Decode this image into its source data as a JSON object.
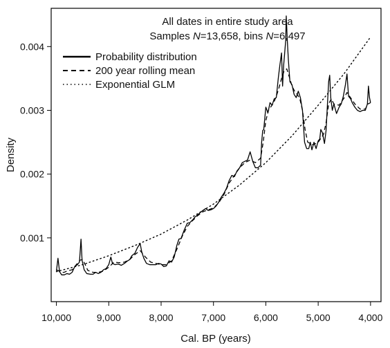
{
  "chart_data": {
    "type": "line",
    "title": "All dates in entire study area",
    "subtitle": {
      "prefix": "Samples ",
      "n1_symbol": "N",
      "n1_value": "=13,658",
      "sep": ", bins ",
      "n2_symbol": "N",
      "n2_value": "=6,497"
    },
    "xlabel": "Cal. BP (years)",
    "ylabel": "Density",
    "x_reversed": true,
    "xlim": [
      10100,
      3800
    ],
    "ylim": [
      0.0,
      0.0046
    ],
    "x_ticks": [
      {
        "value": 10000,
        "label": "10,000"
      },
      {
        "value": 9000,
        "label": "9,000"
      },
      {
        "value": 8000,
        "label": "8,000"
      },
      {
        "value": 7000,
        "label": "7,000"
      },
      {
        "value": 6000,
        "label": "6,000"
      },
      {
        "value": 5000,
        "label": "5,000"
      },
      {
        "value": 4000,
        "label": "4,000"
      }
    ],
    "y_ticks": [
      {
        "value": 0.001,
        "label": "0.001"
      },
      {
        "value": 0.002,
        "label": "0.002"
      },
      {
        "value": 0.003,
        "label": "0.003"
      },
      {
        "value": 0.004,
        "label": "0.004"
      }
    ],
    "legend_position": "top-left",
    "series": [
      {
        "name": "Probability distribution",
        "style": "solid",
        "color": "#000000",
        "points": [
          [
            10000,
            0.00048
          ],
          [
            9970,
            0.00068
          ],
          [
            9940,
            0.00047
          ],
          [
            9900,
            0.00042
          ],
          [
            9850,
            0.00042
          ],
          [
            9800,
            0.00044
          ],
          [
            9750,
            0.00043
          ],
          [
            9700,
            0.00046
          ],
          [
            9650,
            0.00055
          ],
          [
            9600,
            0.00058
          ],
          [
            9560,
            0.00062
          ],
          [
            9530,
            0.00098
          ],
          [
            9510,
            0.00065
          ],
          [
            9470,
            0.0005
          ],
          [
            9420,
            0.00044
          ],
          [
            9350,
            0.00043
          ],
          [
            9300,
            0.00043
          ],
          [
            9250,
            0.00046
          ],
          [
            9200,
            0.00044
          ],
          [
            9150,
            0.00046
          ],
          [
            9100,
            0.0005
          ],
          [
            9050,
            0.00052
          ],
          [
            9000,
            0.00058
          ],
          [
            8960,
            0.0007
          ],
          [
            8930,
            0.0006
          ],
          [
            8880,
            0.00058
          ],
          [
            8820,
            0.00059
          ],
          [
            8760,
            0.00057
          ],
          [
            8700,
            0.0006
          ],
          [
            8640,
            0.00064
          ],
          [
            8600,
            0.00066
          ],
          [
            8560,
            0.00072
          ],
          [
            8500,
            0.00076
          ],
          [
            8450,
            0.00085
          ],
          [
            8400,
            0.00091
          ],
          [
            8370,
            0.00078
          ],
          [
            8330,
            0.00068
          ],
          [
            8280,
            0.0006
          ],
          [
            8220,
            0.00058
          ],
          [
            8170,
            0.00058
          ],
          [
            8100,
            0.00058
          ],
          [
            8050,
            0.0006
          ],
          [
            8000,
            0.00059
          ],
          [
            7950,
            0.00055
          ],
          [
            7900,
            0.00056
          ],
          [
            7850,
            0.00064
          ],
          [
            7800,
            0.00062
          ],
          [
            7750,
            0.0007
          ],
          [
            7700,
            0.00088
          ],
          [
            7660,
            0.00098
          ],
          [
            7620,
            0.00099
          ],
          [
            7560,
            0.00112
          ],
          [
            7500,
            0.00123
          ],
          [
            7450,
            0.00124
          ],
          [
            7400,
            0.00128
          ],
          [
            7350,
            0.00133
          ],
          [
            7300,
            0.00136
          ],
          [
            7250,
            0.0014
          ],
          [
            7200,
            0.00143
          ],
          [
            7150,
            0.00146
          ],
          [
            7100,
            0.00143
          ],
          [
            7050,
            0.00144
          ],
          [
            7000,
            0.00146
          ],
          [
            6950,
            0.0015
          ],
          [
            6900,
            0.00156
          ],
          [
            6850,
            0.00164
          ],
          [
            6800,
            0.0017
          ],
          [
            6750,
            0.00178
          ],
          [
            6700,
            0.0019
          ],
          [
            6650,
            0.00198
          ],
          [
            6600,
            0.00196
          ],
          [
            6550,
            0.00205
          ],
          [
            6500,
            0.0021
          ],
          [
            6450,
            0.00218
          ],
          [
            6400,
            0.0022
          ],
          [
            6350,
            0.00222
          ],
          [
            6300,
            0.00235
          ],
          [
            6250,
            0.0022
          ],
          [
            6200,
            0.0021
          ],
          [
            6150,
            0.0021
          ],
          [
            6100,
            0.00214
          ],
          [
            6080,
            0.0025
          ],
          [
            6060,
            0.00268
          ],
          [
            6040,
            0.0027
          ],
          [
            6000,
            0.00305
          ],
          [
            5960,
            0.00296
          ],
          [
            5920,
            0.00312
          ],
          [
            5880,
            0.00308
          ],
          [
            5840,
            0.00318
          ],
          [
            5800,
            0.0032
          ],
          [
            5760,
            0.00352
          ],
          [
            5730,
            0.00372
          ],
          [
            5700,
            0.0039
          ],
          [
            5680,
            0.00338
          ],
          [
            5660,
            0.0037
          ],
          [
            5640,
            0.0039
          ],
          [
            5620,
            0.0041
          ],
          [
            5610,
            0.00448
          ],
          [
            5590,
            0.0041
          ],
          [
            5570,
            0.0038
          ],
          [
            5540,
            0.00345
          ],
          [
            5500,
            0.0034
          ],
          [
            5460,
            0.00325
          ],
          [
            5420,
            0.0032
          ],
          [
            5380,
            0.0033
          ],
          [
            5340,
            0.0032
          ],
          [
            5300,
            0.003
          ],
          [
            5260,
            0.0025
          ],
          [
            5220,
            0.0024
          ],
          [
            5180,
            0.0024
          ],
          [
            5150,
            0.0025
          ],
          [
            5120,
            0.00238
          ],
          [
            5080,
            0.0025
          ],
          [
            5040,
            0.0024
          ],
          [
            5000,
            0.00252
          ],
          [
            4970,
            0.00255
          ],
          [
            4950,
            0.0027
          ],
          [
            4920,
            0.00265
          ],
          [
            4880,
            0.00248
          ],
          [
            4850,
            0.00268
          ],
          [
            4800,
            0.00345
          ],
          [
            4780,
            0.00355
          ],
          [
            4760,
            0.0032
          ],
          [
            4730,
            0.003
          ],
          [
            4700,
            0.0031
          ],
          [
            4650,
            0.00295
          ],
          [
            4600,
            0.00305
          ],
          [
            4560,
            0.0031
          ],
          [
            4520,
            0.00322
          ],
          [
            4480,
            0.0034
          ],
          [
            4450,
            0.00357
          ],
          [
            4420,
            0.00322
          ],
          [
            4380,
            0.00318
          ],
          [
            4350,
            0.00312
          ],
          [
            4300,
            0.00305
          ],
          [
            4250,
            0.003
          ],
          [
            4200,
            0.00298
          ],
          [
            4150,
            0.003
          ],
          [
            4100,
            0.003
          ],
          [
            4060,
            0.0031
          ],
          [
            4040,
            0.00338
          ],
          [
            4020,
            0.0032
          ],
          [
            4000,
            0.00312
          ]
        ]
      },
      {
        "name": "200 year rolling mean",
        "style": "dashed",
        "color": "#000000",
        "points": [
          [
            10000,
            0.0005
          ],
          [
            9950,
            0.00048
          ],
          [
            9900,
            0.00046
          ],
          [
            9850,
            0.00046
          ],
          [
            9800,
            0.00048
          ],
          [
            9700,
            0.0005
          ],
          [
            9600,
            0.0006
          ],
          [
            9550,
            0.00065
          ],
          [
            9500,
            0.00066
          ],
          [
            9450,
            0.00058
          ],
          [
            9400,
            0.00049
          ],
          [
            9300,
            0.00046
          ],
          [
            9200,
            0.00046
          ],
          [
            9100,
            0.00048
          ],
          [
            9000,
            0.00054
          ],
          [
            8900,
            0.00062
          ],
          [
            8800,
            0.00061
          ],
          [
            8700,
            0.00062
          ],
          [
            8600,
            0.00066
          ],
          [
            8500,
            0.00074
          ],
          [
            8400,
            0.0008
          ],
          [
            8300,
            0.0007
          ],
          [
            8200,
            0.00062
          ],
          [
            8100,
            0.0006
          ],
          [
            8000,
            0.00058
          ],
          [
            7900,
            0.00058
          ],
          [
            7800,
            0.00064
          ],
          [
            7700,
            0.00082
          ],
          [
            7600,
            0.00102
          ],
          [
            7500,
            0.00118
          ],
          [
            7400,
            0.00127
          ],
          [
            7300,
            0.00135
          ],
          [
            7200,
            0.00141
          ],
          [
            7100,
            0.00144
          ],
          [
            7000,
            0.00147
          ],
          [
            6900,
            0.00155
          ],
          [
            6800,
            0.00168
          ],
          [
            6700,
            0.00186
          ],
          [
            6600,
            0.00198
          ],
          [
            6500,
            0.0021
          ],
          [
            6400,
            0.00218
          ],
          [
            6300,
            0.00222
          ],
          [
            6200,
            0.00218
          ],
          [
            6100,
            0.00225
          ],
          [
            6050,
            0.0025
          ],
          [
            6000,
            0.00284
          ],
          [
            5950,
            0.003
          ],
          [
            5900,
            0.00306
          ],
          [
            5850,
            0.00312
          ],
          [
            5800,
            0.00322
          ],
          [
            5750,
            0.00335
          ],
          [
            5700,
            0.0035
          ],
          [
            5650,
            0.00362
          ],
          [
            5600,
            0.00365
          ],
          [
            5550,
            0.00352
          ],
          [
            5500,
            0.00338
          ],
          [
            5450,
            0.0033
          ],
          [
            5400,
            0.00325
          ],
          [
            5350,
            0.00318
          ],
          [
            5300,
            0.003
          ],
          [
            5250,
            0.0027
          ],
          [
            5200,
            0.0025
          ],
          [
            5100,
            0.00246
          ],
          [
            5000,
            0.0025
          ],
          [
            4900,
            0.00262
          ],
          [
            4850,
            0.0028
          ],
          [
            4800,
            0.0031
          ],
          [
            4750,
            0.00318
          ],
          [
            4700,
            0.0031
          ],
          [
            4600,
            0.00308
          ],
          [
            4500,
            0.0032
          ],
          [
            4450,
            0.00328
          ],
          [
            4400,
            0.00322
          ],
          [
            4300,
            0.0031
          ],
          [
            4200,
            0.00302
          ],
          [
            4100,
            0.00302
          ],
          [
            4050,
            0.0031
          ],
          [
            4000,
            0.00312
          ]
        ]
      },
      {
        "name": "Exponential GLM",
        "style": "dotted",
        "color": "#000000",
        "points": [
          [
            10000,
            0.00047
          ],
          [
            9500,
            0.00058
          ],
          [
            9000,
            0.00072
          ],
          [
            8500,
            0.00088
          ],
          [
            8000,
            0.00106
          ],
          [
            7500,
            0.00128
          ],
          [
            7000,
            0.00153
          ],
          [
            6500,
            0.00183
          ],
          [
            6000,
            0.00218
          ],
          [
            5500,
            0.0026
          ],
          [
            5000,
            0.00308
          ],
          [
            4500,
            0.00358
          ],
          [
            4000,
            0.00415
          ]
        ]
      }
    ]
  }
}
